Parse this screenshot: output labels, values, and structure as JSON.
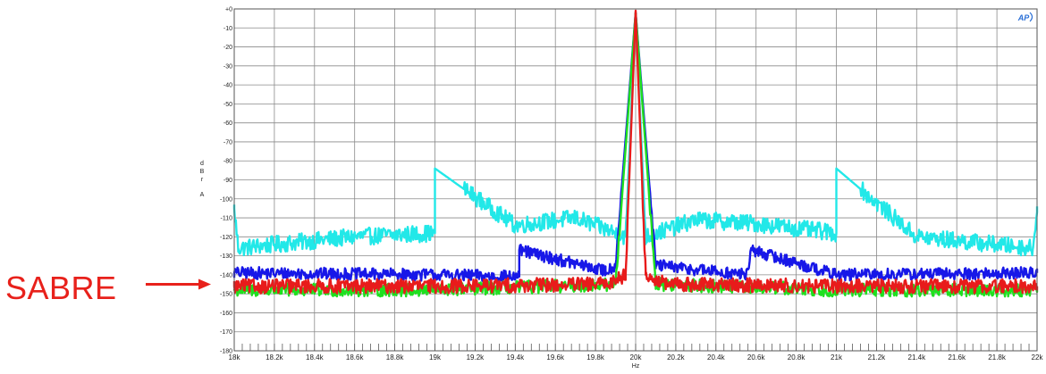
{
  "chart_data": {
    "type": "line",
    "title": "",
    "xlabel": "Hz",
    "ylabel": [
      "d",
      "B",
      "r",
      "A"
    ],
    "xlim": [
      18000,
      22000
    ],
    "ylim": [
      -180,
      0
    ],
    "grid": true,
    "x_ticks": [
      18000,
      18200,
      18400,
      18600,
      18800,
      19000,
      19200,
      19400,
      19600,
      19800,
      20000,
      20200,
      20400,
      20600,
      20800,
      21000,
      21200,
      21400,
      21600,
      21800,
      22000
    ],
    "x_tick_labels": [
      "18k",
      "18.2k",
      "18.4k",
      "18.6k",
      "18.8k",
      "19k",
      "19.2k",
      "19.4k",
      "19.6k",
      "19.8k",
      "20k",
      "20.2k",
      "20.4k",
      "20.6k",
      "20.8k",
      "21k",
      "21.2k",
      "21.4k",
      "21.6k",
      "21.8k",
      "22k"
    ],
    "y_ticks": [
      0,
      -10,
      -20,
      -30,
      -40,
      -50,
      -60,
      -70,
      -80,
      -90,
      -100,
      -110,
      -120,
      -130,
      -140,
      -150,
      -160,
      -170,
      -180
    ],
    "y_tick_labels": [
      "+0",
      "-10",
      "-20",
      "-30",
      "-40",
      "-50",
      "-60",
      "-70",
      "-80",
      "-90",
      "-100",
      "-110",
      "-120",
      "-130",
      "-140",
      "-150",
      "-160",
      "-170",
      "-180"
    ],
    "logo_text": "AP",
    "series": [
      {
        "color": "#22e8e8",
        "key_points": [
          {
            "x": 18000,
            "y": -105
          },
          {
            "x": 18020,
            "y": -126
          },
          {
            "x": 18200,
            "y": -124
          },
          {
            "x": 18600,
            "y": -120
          },
          {
            "x": 19000,
            "y": -118
          },
          {
            "x": 19000,
            "y": -84
          },
          {
            "x": 19400,
            "y": -114
          },
          {
            "x": 19700,
            "y": -110
          },
          {
            "x": 19950,
            "y": -120
          },
          {
            "x": 20000,
            "y": -2
          },
          {
            "x": 20050,
            "y": -120
          },
          {
            "x": 20300,
            "y": -111
          },
          {
            "x": 20600,
            "y": -113
          },
          {
            "x": 21000,
            "y": -118
          },
          {
            "x": 21000,
            "y": -84
          },
          {
            "x": 21400,
            "y": -120
          },
          {
            "x": 21800,
            "y": -124
          },
          {
            "x": 21980,
            "y": -126
          },
          {
            "x": 22000,
            "y": -104
          }
        ]
      },
      {
        "color": "#1717e8",
        "key_points": [
          {
            "x": 18000,
            "y": -139
          },
          {
            "x": 19000,
            "y": -140
          },
          {
            "x": 19420,
            "y": -141
          },
          {
            "x": 19420,
            "y": -127
          },
          {
            "x": 19850,
            "y": -138
          },
          {
            "x": 19900,
            "y": -135
          },
          {
            "x": 20000,
            "y": -2
          },
          {
            "x": 20100,
            "y": -135
          },
          {
            "x": 20550,
            "y": -140
          },
          {
            "x": 20580,
            "y": -127
          },
          {
            "x": 21000,
            "y": -140
          },
          {
            "x": 22000,
            "y": -139
          }
        ]
      },
      {
        "color": "#1fe01f",
        "key_points": [
          {
            "x": 18000,
            "y": -148
          },
          {
            "x": 19000,
            "y": -148
          },
          {
            "x": 19900,
            "y": -145
          },
          {
            "x": 20000,
            "y": -2
          },
          {
            "x": 20100,
            "y": -145
          },
          {
            "x": 21000,
            "y": -148
          },
          {
            "x": 22000,
            "y": -148
          }
        ]
      },
      {
        "color": "#e81b1b",
        "key_points": [
          {
            "x": 18000,
            "y": -146
          },
          {
            "x": 19000,
            "y": -146
          },
          {
            "x": 19850,
            "y": -145
          },
          {
            "x": 19950,
            "y": -140
          },
          {
            "x": 20000,
            "y": -1
          },
          {
            "x": 20050,
            "y": -140
          },
          {
            "x": 20150,
            "y": -145
          },
          {
            "x": 21000,
            "y": -146
          },
          {
            "x": 22000,
            "y": -146
          }
        ]
      }
    ]
  },
  "annotation": {
    "label": "SABRE",
    "arrow_color": "#e8211b",
    "points_to_y": -145
  }
}
